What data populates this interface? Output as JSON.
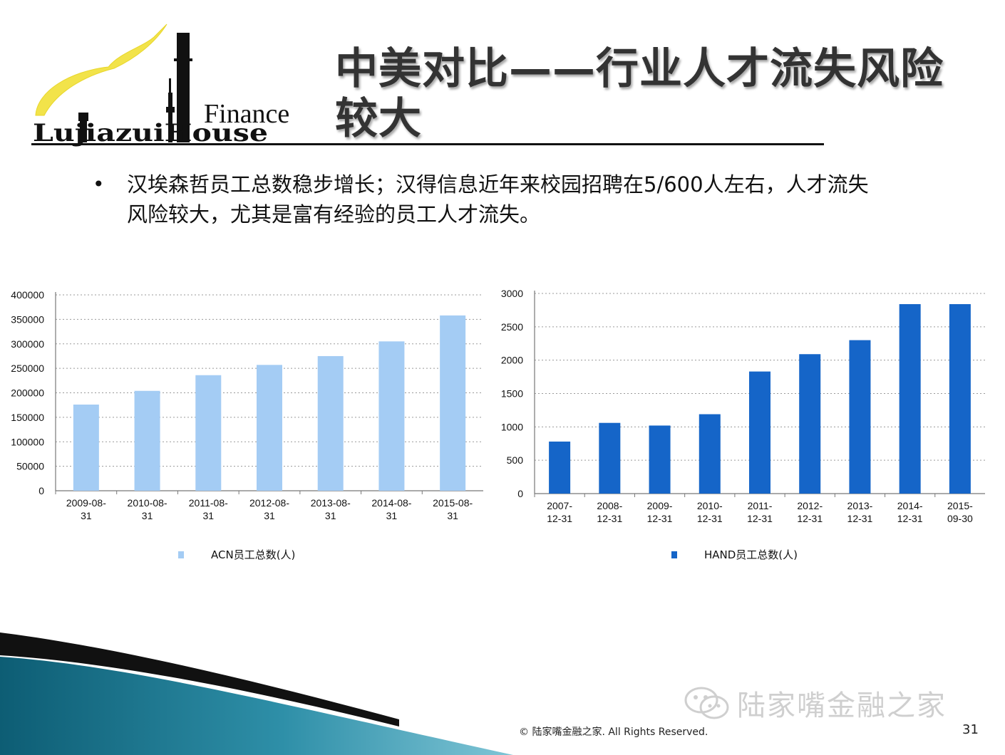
{
  "header": {
    "logo_wordmark": "LujiazuiHouse",
    "logo_finance": "Finance",
    "title": "中美对比——行业人才流失风险较大"
  },
  "bullet": {
    "marker": "•",
    "text": "汉埃森哲员工总数稳步增长；汉得信息近年来校园招聘在5/600人左右，人才流失风险较大，尤其是富有经验的员工人才流失。"
  },
  "chart_data": [
    {
      "type": "bar",
      "categories": [
        "2009-08-31",
        "2010-08-31",
        "2011-08-31",
        "2012-08-31",
        "2013-08-31",
        "2014-08-31",
        "2015-08-31"
      ],
      "category_lines": [
        [
          "2009-08-",
          "31"
        ],
        [
          "2010-08-",
          "31"
        ],
        [
          "2011-08-",
          "31"
        ],
        [
          "2012-08-",
          "31"
        ],
        [
          "2013-08-",
          "31"
        ],
        [
          "2014-08-",
          "31"
        ],
        [
          "2015-08-",
          "31"
        ]
      ],
      "series": [
        {
          "name": "ACN员工总数(人)",
          "values": [
            176000,
            204000,
            236000,
            257000,
            275000,
            305000,
            358000
          ]
        }
      ],
      "ylim": [
        0,
        400000
      ],
      "yticks": [
        0,
        50000,
        100000,
        150000,
        200000,
        250000,
        300000,
        350000,
        400000
      ],
      "grid": true,
      "legend_position": "bottom",
      "color": "#a4ccf4"
    },
    {
      "type": "bar",
      "categories": [
        "2007-12-31",
        "2008-12-31",
        "2009-12-31",
        "2010-12-31",
        "2011-12-31",
        "2012-12-31",
        "2013-12-31",
        "2014-12-31",
        "2015-09-30"
      ],
      "category_lines": [
        [
          "2007-",
          "12-31"
        ],
        [
          "2008-",
          "12-31"
        ],
        [
          "2009-",
          "12-31"
        ],
        [
          "2010-",
          "12-31"
        ],
        [
          "2011-",
          "12-31"
        ],
        [
          "2012-",
          "12-31"
        ],
        [
          "2013-",
          "12-31"
        ],
        [
          "2014-",
          "12-31"
        ],
        [
          "2015-",
          "09-30"
        ]
      ],
      "series": [
        {
          "name": "HAND员工总数(人)",
          "values": [
            780,
            1060,
            1020,
            1190,
            1830,
            2090,
            2300,
            2840,
            2840
          ]
        }
      ],
      "ylim": [
        0,
        3000
      ],
      "yticks": [
        0,
        500,
        1000,
        1500,
        2000,
        2500,
        3000
      ],
      "grid": true,
      "legend_position": "bottom",
      "color": "#1565c8"
    }
  ],
  "footer": {
    "watermark": "陆家嘴金融之家",
    "copyright": "© 陆家嘴金融之家. All Rights Reserved.",
    "page_number": "31"
  }
}
